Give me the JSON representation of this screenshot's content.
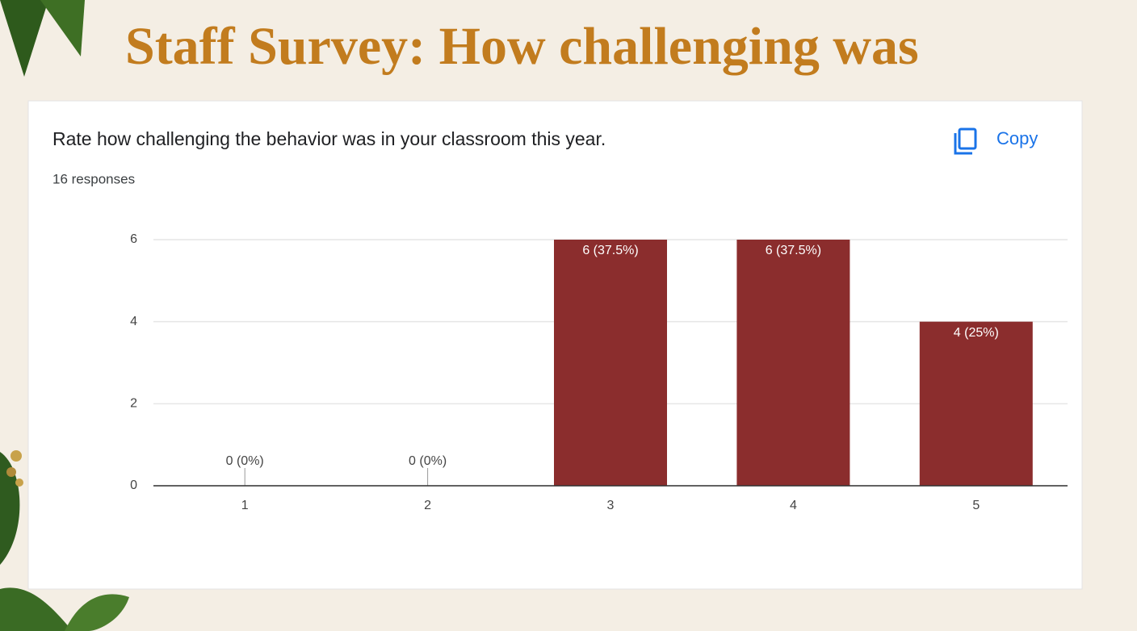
{
  "slide_title": "Staff Survey: How challenging was",
  "copy_button": "Copy",
  "chart_data": {
    "type": "bar",
    "title": "Rate how challenging the behavior was in your classroom this year.",
    "subtitle": "16 responses",
    "categories": [
      "1",
      "2",
      "3",
      "4",
      "5"
    ],
    "values": [
      0,
      0,
      6,
      6,
      4
    ],
    "value_labels": [
      "0 (0%)",
      "0 (0%)",
      "6 (37.5%)",
      "6 (37.5%)",
      "4 (25%)"
    ],
    "color": "#8b2d2d",
    "ylim": [
      0,
      6
    ],
    "yticks": [
      0,
      2,
      4,
      6
    ],
    "grid": true
  }
}
